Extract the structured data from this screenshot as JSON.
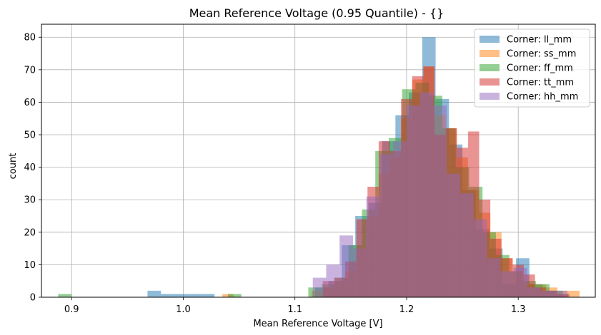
{
  "chart_data": {
    "type": "bar",
    "title": "Mean Reference Voltage (0.95 Quantile) - {}",
    "xlabel": "Mean Reference Voltage [V]",
    "ylabel": "count",
    "xlim": [
      0.873,
      1.369
    ],
    "ylim": [
      0,
      84
    ],
    "xticks": [
      "0.9",
      "1.0",
      "1.1",
      "1.2",
      "1.3"
    ],
    "yticks": [
      "0",
      "10",
      "20",
      "30",
      "40",
      "50",
      "60",
      "70",
      "80"
    ],
    "grid": true,
    "legend_position": "top-right",
    "bar_alpha": 0.5,
    "series": [
      {
        "name": "Corner: ll_mm",
        "color": "#1f77b4",
        "bins": [
          [
            0.968,
            0.98,
            2
          ],
          [
            0.98,
            0.992,
            1
          ],
          [
            0.992,
            1.004,
            1
          ],
          [
            1.004,
            1.016,
            1
          ],
          [
            1.016,
            1.028,
            1
          ],
          [
            1.118,
            1.13,
            3
          ],
          [
            1.13,
            1.142,
            5
          ],
          [
            1.142,
            1.154,
            16
          ],
          [
            1.154,
            1.166,
            25
          ],
          [
            1.166,
            1.178,
            29
          ],
          [
            1.178,
            1.19,
            48
          ],
          [
            1.19,
            1.202,
            56
          ],
          [
            1.202,
            1.214,
            63
          ],
          [
            1.214,
            1.226,
            80
          ],
          [
            1.226,
            1.238,
            61
          ],
          [
            1.238,
            1.25,
            47
          ],
          [
            1.25,
            1.262,
            33
          ],
          [
            1.262,
            1.274,
            21
          ],
          [
            1.274,
            1.286,
            15
          ],
          [
            1.286,
            1.298,
            4
          ],
          [
            1.298,
            1.31,
            12
          ],
          [
            1.31,
            1.322,
            4
          ],
          [
            1.322,
            1.334,
            2
          ],
          [
            1.334,
            1.346,
            1
          ]
        ]
      },
      {
        "name": "Corner: ss_mm",
        "color": "#ff7f0e",
        "bins": [
          [
            1.035,
            1.045,
            1
          ],
          [
            1.115,
            1.125,
            2
          ],
          [
            1.125,
            1.135,
            3
          ],
          [
            1.135,
            1.145,
            5
          ],
          [
            1.145,
            1.155,
            8
          ],
          [
            1.155,
            1.165,
            15
          ],
          [
            1.165,
            1.175,
            25
          ],
          [
            1.175,
            1.185,
            38
          ],
          [
            1.185,
            1.195,
            43
          ],
          [
            1.195,
            1.205,
            55
          ],
          [
            1.205,
            1.215,
            67
          ],
          [
            1.215,
            1.225,
            71
          ],
          [
            1.225,
            1.235,
            56
          ],
          [
            1.235,
            1.245,
            52
          ],
          [
            1.245,
            1.255,
            43
          ],
          [
            1.255,
            1.265,
            33
          ],
          [
            1.265,
            1.275,
            26
          ],
          [
            1.275,
            1.285,
            20
          ],
          [
            1.285,
            1.295,
            12
          ],
          [
            1.295,
            1.305,
            8
          ],
          [
            1.305,
            1.315,
            4
          ],
          [
            1.315,
            1.325,
            4
          ],
          [
            1.325,
            1.335,
            3
          ],
          [
            1.335,
            1.345,
            2
          ],
          [
            1.345,
            1.355,
            2
          ]
        ]
      },
      {
        "name": "Corner: ff_mm",
        "color": "#2ca02c",
        "bins": [
          [
            0.888,
            0.9,
            1
          ],
          [
            1.04,
            1.052,
            1
          ],
          [
            1.112,
            1.124,
            3
          ],
          [
            1.124,
            1.136,
            4
          ],
          [
            1.136,
            1.148,
            6
          ],
          [
            1.148,
            1.16,
            16
          ],
          [
            1.16,
            1.172,
            27
          ],
          [
            1.172,
            1.184,
            45
          ],
          [
            1.184,
            1.196,
            49
          ],
          [
            1.196,
            1.208,
            64
          ],
          [
            1.208,
            1.22,
            66
          ],
          [
            1.22,
            1.232,
            62
          ],
          [
            1.232,
            1.244,
            52
          ],
          [
            1.244,
            1.256,
            40
          ],
          [
            1.256,
            1.268,
            34
          ],
          [
            1.268,
            1.28,
            20
          ],
          [
            1.28,
            1.292,
            13
          ],
          [
            1.292,
            1.304,
            8
          ],
          [
            1.304,
            1.316,
            5
          ],
          [
            1.316,
            1.328,
            4
          ],
          [
            1.328,
            1.34,
            2
          ]
        ]
      },
      {
        "name": "Corner: tt_mm",
        "color": "#d62728",
        "bins": [
          [
            1.125,
            1.135,
            5
          ],
          [
            1.135,
            1.145,
            6
          ],
          [
            1.145,
            1.155,
            11
          ],
          [
            1.155,
            1.165,
            24
          ],
          [
            1.165,
            1.175,
            34
          ],
          [
            1.175,
            1.185,
            48
          ],
          [
            1.185,
            1.195,
            45
          ],
          [
            1.195,
            1.205,
            61
          ],
          [
            1.205,
            1.215,
            68
          ],
          [
            1.215,
            1.225,
            71
          ],
          [
            1.225,
            1.235,
            50
          ],
          [
            1.235,
            1.245,
            52
          ],
          [
            1.245,
            1.255,
            46
          ],
          [
            1.255,
            1.265,
            51
          ],
          [
            1.265,
            1.275,
            30
          ],
          [
            1.275,
            1.285,
            18
          ],
          [
            1.285,
            1.295,
            12
          ],
          [
            1.295,
            1.305,
            10
          ],
          [
            1.305,
            1.315,
            7
          ],
          [
            1.315,
            1.325,
            3
          ],
          [
            1.325,
            1.335,
            2
          ],
          [
            1.335,
            1.345,
            1
          ]
        ]
      },
      {
        "name": "Corner: hh_mm",
        "color": "#9467bd",
        "bins": [
          [
            1.116,
            1.128,
            6
          ],
          [
            1.128,
            1.14,
            10
          ],
          [
            1.14,
            1.152,
            19
          ],
          [
            1.152,
            1.164,
            15
          ],
          [
            1.164,
            1.176,
            31
          ],
          [
            1.176,
            1.188,
            44
          ],
          [
            1.188,
            1.2,
            48
          ],
          [
            1.2,
            1.212,
            59
          ],
          [
            1.212,
            1.224,
            63
          ],
          [
            1.224,
            1.236,
            59
          ],
          [
            1.236,
            1.248,
            38
          ],
          [
            1.248,
            1.26,
            32
          ],
          [
            1.26,
            1.272,
            24
          ],
          [
            1.272,
            1.284,
            12
          ],
          [
            1.284,
            1.296,
            8
          ],
          [
            1.296,
            1.308,
            9
          ],
          [
            1.308,
            1.32,
            3
          ],
          [
            1.32,
            1.332,
            2
          ],
          [
            1.332,
            1.344,
            2
          ]
        ]
      }
    ]
  }
}
